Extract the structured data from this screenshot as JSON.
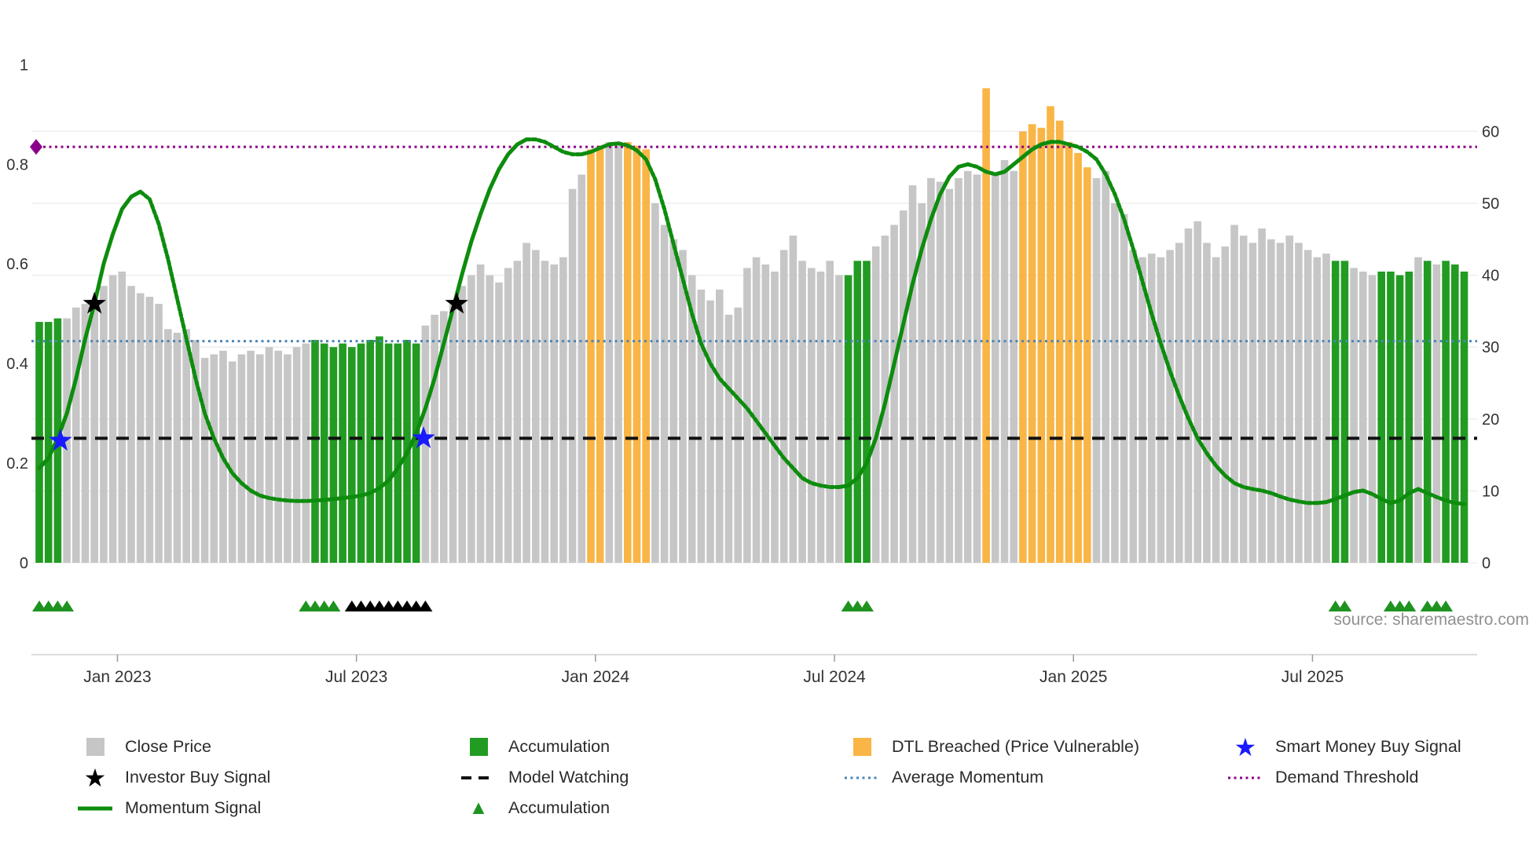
{
  "source_text": "source: sharemaestro.com",
  "colors": {
    "bar_gray": "#c6c6c6",
    "bar_green": "#229b22",
    "bar_orange": "#f9b545",
    "momentum_line": "#0d8c0d",
    "demand_threshold": "#8b008b",
    "average_momentum": "#4a86b8",
    "model_watching": "#111111",
    "smart_money_star": "#1a1aff",
    "investor_star": "#000000",
    "triangle_green": "#1e9320",
    "triangle_black": "#000000",
    "grid": "#ececec",
    "axis_line": "#cfcfcf",
    "axis_text": "#333333"
  },
  "axes": {
    "x_ticks": [
      {
        "label": "Jan 2023",
        "week": 8.5
      },
      {
        "label": "Jul 2023",
        "week": 34.5
      },
      {
        "label": "Jan 2024",
        "week": 60.5
      },
      {
        "label": "Jul 2024",
        "week": 86.5
      },
      {
        "label": "Jan 2025",
        "week": 112.5
      },
      {
        "label": "Jul 2025",
        "week": 138.5
      }
    ],
    "left_ticks": [
      0,
      0.2,
      0.4,
      0.6,
      0.8,
      1
    ],
    "right_ticks": [
      0,
      10,
      20,
      30,
      40,
      50,
      60
    ]
  },
  "chart_data": {
    "type": "bar",
    "frequency": "weekly",
    "x_range_note": "weekly bars from ~Nov 2022 to ~Oct 2025",
    "left_axis_range": [
      0,
      1.06
    ],
    "right_axis_range": [
      0,
      68
    ],
    "bars": {
      "name": "Close Price",
      "axis": "right",
      "class_legend": {
        ".": "Close Price (gray)",
        "G": "Accumulation (green)",
        "O": "DTL Breached / Price Vulnerable (orange)"
      },
      "classes": "GGG...........................GGGGGGGGGGGG..................OO..OOO.....................GGG............O...OOOOOOOO..........................GG...GGGG.G.GGG",
      "values": [
        33.5,
        33.5,
        34,
        34,
        35.5,
        36,
        36.5,
        38.5,
        40,
        40.5,
        38.5,
        37.5,
        37,
        36,
        32.5,
        32,
        32.5,
        31,
        28.5,
        29,
        29.5,
        28,
        29,
        29.5,
        29,
        30,
        29.5,
        29,
        30,
        30.5,
        31,
        30.5,
        30,
        30.5,
        30,
        30.5,
        31,
        31.5,
        30.5,
        30.5,
        31,
        30.5,
        33,
        34.5,
        35,
        36,
        38.5,
        40,
        41.5,
        40,
        39,
        41,
        42,
        44.5,
        43.5,
        42,
        41.5,
        42.5,
        52,
        54,
        57.5,
        58,
        58.5,
        58,
        58.5,
        58,
        57.5,
        50,
        47,
        45,
        43.5,
        40,
        38,
        36.5,
        38,
        34.5,
        35.5,
        41,
        42.5,
        41.5,
        40.5,
        43.5,
        45.5,
        42,
        41,
        40.5,
        42,
        40,
        40,
        42,
        42,
        44,
        45.5,
        47,
        49,
        52.5,
        50,
        53.5,
        53,
        52,
        53.5,
        54.5,
        54,
        66,
        54,
        56,
        54.5,
        60,
        61,
        60.5,
        63.5,
        61.5,
        58.5,
        57,
        55,
        53.5,
        54.5,
        50,
        48.5,
        43.5,
        42.5,
        43,
        42.5,
        43.5,
        44.5,
        46.5,
        47.5,
        44.5,
        42.5,
        44,
        47,
        45.5,
        44.5,
        46.5,
        45,
        44.5,
        45.5,
        44.5,
        43.5,
        42.5,
        43,
        42,
        42,
        41,
        40.5,
        40,
        40.5,
        40.5,
        40,
        40.5,
        42.5,
        42,
        41.5,
        42,
        41.5,
        40.5
      ]
    },
    "momentum": {
      "name": "Momentum Signal",
      "axis": "left",
      "values": [
        0.19,
        0.21,
        0.25,
        0.3,
        0.37,
        0.45,
        0.52,
        0.6,
        0.66,
        0.71,
        0.735,
        0.745,
        0.73,
        0.68,
        0.61,
        0.53,
        0.45,
        0.37,
        0.3,
        0.25,
        0.21,
        0.18,
        0.16,
        0.145,
        0.135,
        0.13,
        0.127,
        0.125,
        0.124,
        0.124,
        0.125,
        0.126,
        0.128,
        0.13,
        0.132,
        0.135,
        0.14,
        0.15,
        0.165,
        0.19,
        0.22,
        0.26,
        0.31,
        0.37,
        0.44,
        0.51,
        0.58,
        0.645,
        0.7,
        0.75,
        0.79,
        0.82,
        0.84,
        0.85,
        0.85,
        0.845,
        0.835,
        0.825,
        0.82,
        0.82,
        0.825,
        0.833,
        0.84,
        0.842,
        0.838,
        0.828,
        0.81,
        0.77,
        0.71,
        0.64,
        0.57,
        0.5,
        0.44,
        0.4,
        0.37,
        0.35,
        0.33,
        0.31,
        0.285,
        0.26,
        0.235,
        0.21,
        0.19,
        0.17,
        0.16,
        0.155,
        0.152,
        0.152,
        0.155,
        0.17,
        0.2,
        0.25,
        0.32,
        0.4,
        0.48,
        0.56,
        0.63,
        0.69,
        0.74,
        0.775,
        0.795,
        0.8,
        0.795,
        0.785,
        0.78,
        0.785,
        0.8,
        0.815,
        0.83,
        0.84,
        0.845,
        0.845,
        0.84,
        0.835,
        0.825,
        0.81,
        0.78,
        0.74,
        0.69,
        0.63,
        0.565,
        0.5,
        0.44,
        0.385,
        0.335,
        0.29,
        0.25,
        0.22,
        0.195,
        0.175,
        0.16,
        0.152,
        0.148,
        0.145,
        0.14,
        0.133,
        0.127,
        0.123,
        0.12,
        0.12,
        0.122,
        0.128,
        0.135,
        0.142,
        0.145,
        0.138,
        0.128,
        0.12,
        0.125,
        0.14,
        0.148,
        0.14,
        0.132,
        0.125,
        0.12,
        0.118
      ]
    },
    "hlines": [
      {
        "name": "Demand Threshold",
        "value": 0.835,
        "axis": "left",
        "style": "dotted",
        "color_key": "demand_threshold",
        "marker": "diamond-left"
      },
      {
        "name": "Average Momentum",
        "value": 0.445,
        "axis": "left",
        "style": "dotted",
        "color_key": "average_momentum"
      },
      {
        "name": "Model Watching",
        "value": 0.25,
        "axis": "left",
        "style": "dashed",
        "color_key": "model_watching"
      }
    ],
    "stars": [
      {
        "name": "Investor Buy Signal",
        "color_key": "investor_star",
        "week": 6,
        "y": 0.52
      },
      {
        "name": "Investor Buy Signal",
        "color_key": "investor_star",
        "week": 45.4,
        "y": 0.52
      },
      {
        "name": "Smart Money Buy Signal",
        "color_key": "smart_money_star",
        "week": 2.3,
        "y": 0.245
      },
      {
        "name": "Smart Money Buy Signal",
        "color_key": "smart_money_star",
        "week": 41.8,
        "y": 0.25
      }
    ],
    "triangles": {
      "green_weeks": [
        0,
        1,
        2,
        3,
        29,
        30,
        31,
        32,
        88,
        89,
        90,
        141,
        142,
        147,
        148,
        149,
        151,
        152,
        153
      ],
      "black_weeks": [
        34,
        35,
        36,
        37,
        38,
        39,
        40,
        41,
        42
      ]
    }
  },
  "legend": {
    "close_price": "Close Price",
    "accumulation": "Accumulation",
    "dtl": "DTL Breached (Price Vulnerable)",
    "smart_money": "Smart Money Buy Signal",
    "investor": "Investor Buy Signal",
    "model_watching": "Model Watching",
    "average_momentum": "Average Momentum",
    "demand_threshold": "Demand Threshold",
    "momentum_signal": "Momentum Signal",
    "accumulation_tri": "Accumulation"
  }
}
